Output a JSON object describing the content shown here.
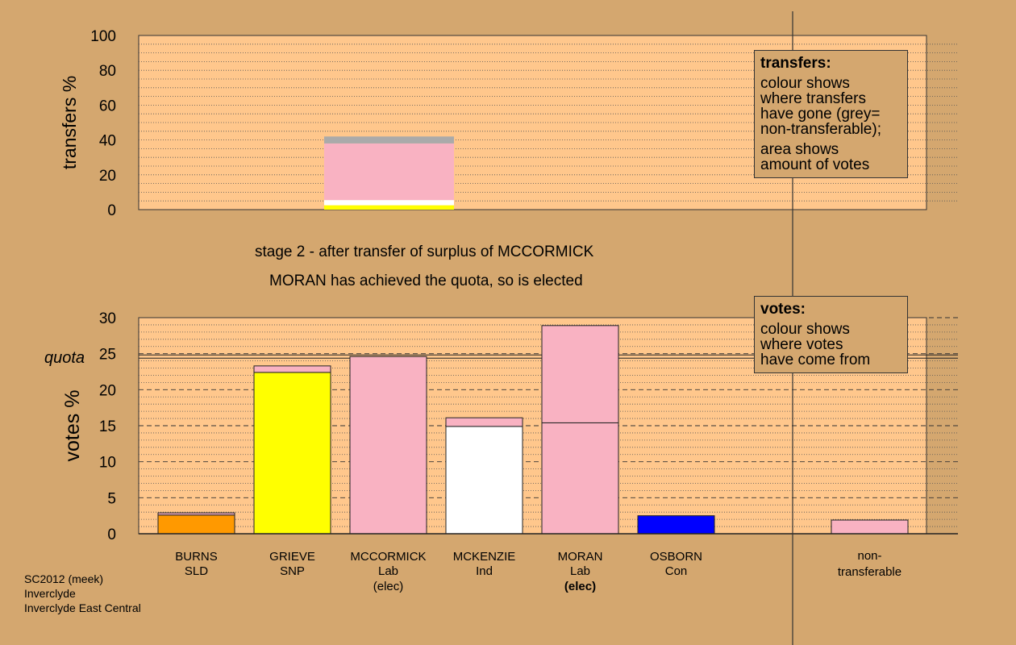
{
  "chart_data": [
    {
      "type": "bar",
      "title": "",
      "ylabel": "transfers %",
      "ylim": [
        0,
        100
      ],
      "yticks": [
        0,
        20,
        40,
        60,
        80,
        100
      ],
      "grid": "dotted",
      "bar": {
        "column": "MCCORMICK",
        "segments": [
          {
            "color": "#ffff00",
            "value": 2.5
          },
          {
            "color": "#ffffff",
            "value": 3.0
          },
          {
            "color": "#f9b2c2",
            "value": 32.5
          },
          {
            "color": "#aaaaaa",
            "value": 4.0
          }
        ]
      },
      "legend_box": {
        "heading": "transfers:",
        "text1": "colour shows\nwhere transfers\nhave gone (grey=\nnon-transferable);",
        "text2": "area shows\namount of votes"
      }
    },
    {
      "type": "bar",
      "ylabel": "votes %",
      "ylim": [
        0,
        30
      ],
      "yticks": [
        0,
        5,
        10,
        15,
        20,
        25,
        30
      ],
      "quota": 24.6,
      "quota_label": "quota",
      "grid": "dashed",
      "candidates": [
        {
          "name": "BURNS",
          "party": "SLD",
          "note": "",
          "segments": [
            {
              "color": "#ff9900",
              "value": 2.6
            },
            {
              "color": "#f9b2c2",
              "value": 0.3
            }
          ]
        },
        {
          "name": "GRIEVE",
          "party": "SNP",
          "note": "",
          "segments": [
            {
              "color": "#ffff00",
              "value": 22.4
            },
            {
              "color": "#f9b2c2",
              "value": 0.9
            }
          ]
        },
        {
          "name": "MCCORMICK",
          "party": "Lab",
          "note": "(elec)",
          "note_bold": false,
          "segments": [
            {
              "color": "#f9b2c2",
              "value": 24.6
            }
          ]
        },
        {
          "name": "MCKENZIE",
          "party": "Ind",
          "note": "",
          "segments": [
            {
              "color": "#ffffff",
              "value": 14.9
            },
            {
              "color": "#f9b2c2",
              "value": 1.2
            }
          ]
        },
        {
          "name": "MORAN",
          "party": "Lab",
          "note": "(elec)",
          "note_bold": true,
          "segments": [
            {
              "color": "#f9b2c2",
              "value": 15.4
            },
            {
              "color": "#f9b2c2",
              "value": 13.5
            }
          ]
        },
        {
          "name": "OSBORN",
          "party": "Con",
          "note": "",
          "segments": [
            {
              "color": "#0000ff",
              "value": 2.5
            }
          ]
        },
        {
          "name": "non-",
          "party": "transferable",
          "note": "",
          "segments": [
            {
              "color": "#f9b2c2",
              "value": 1.9
            }
          ]
        }
      ],
      "legend_box": {
        "heading": "votes:",
        "text1": "colour shows\nwhere votes\nhave come from"
      }
    }
  ],
  "captions": {
    "stage": "stage 2 - after transfer of surplus of MCCORMICK",
    "result": "MORAN has achieved the quota, so is elected"
  },
  "footer": {
    "line1": "SC2012 (meek)",
    "line2": "Inverclyde",
    "line3": "Inverclyde East Central"
  },
  "colors": {
    "background": "#d4a76f",
    "plot_area": "#ffc78c"
  }
}
